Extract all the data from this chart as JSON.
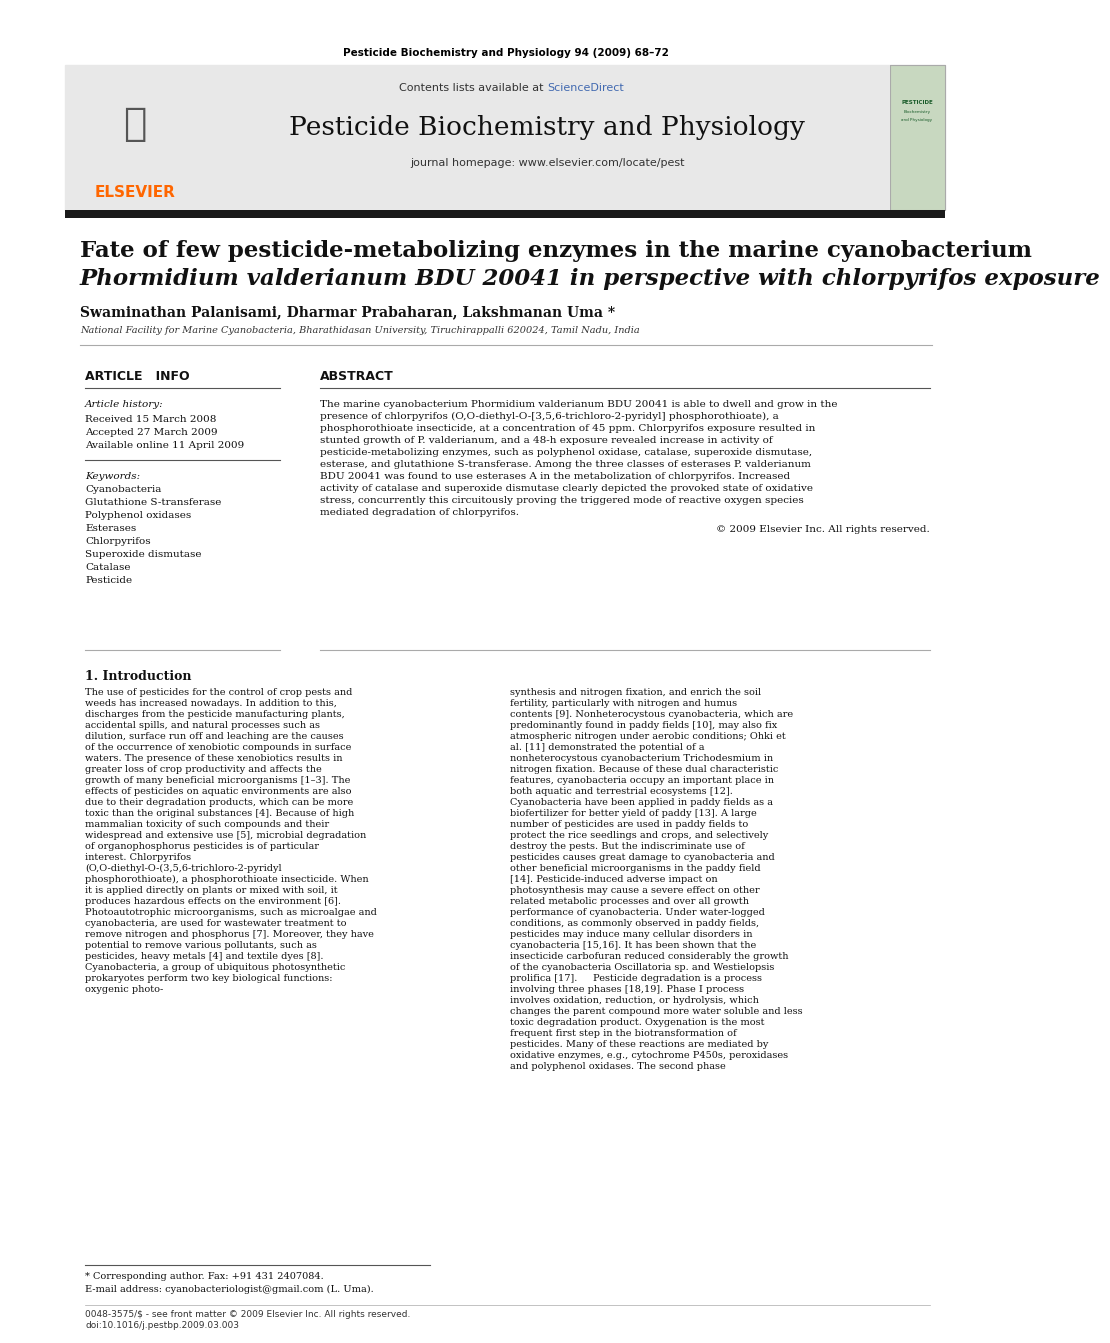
{
  "journal_header_text": "Pesticide Biochemistry and Physiology 94 (2009) 68–72",
  "journal_name": "Pesticide Biochemistry and Physiology",
  "contents_text": "Contents lists available at ScienceDirect",
  "sciencedirect_color": "#4169B0",
  "journal_homepage": "journal homepage: www.elsevier.com/locate/pest",
  "elsevier_color": "#FF6600",
  "title_line1": "Fate of few pesticide-metabolizing enzymes in the marine cyanobacterium",
  "title_line2": "Phormidium valderianum BDU 20041 in perspective with chlorpyrifos exposure",
  "authors": "Swaminathan Palanisami, Dharmar Prabaharan, Lakshmanan Uma *",
  "affiliation": "National Facility for Marine Cyanobacteria, Bharathidasan University, Tiruchirappalli 620024, Tamil Nadu, India",
  "article_info_header": "ARTICLE   INFO",
  "abstract_header": "ABSTRACT",
  "article_history_label": "Article history:",
  "received": "Received 15 March 2008",
  "accepted": "Accepted 27 March 2009",
  "available": "Available online 11 April 2009",
  "keywords_label": "Keywords:",
  "keywords": [
    "Cyanobacteria",
    "Glutathione S-transferase",
    "Polyphenol oxidases",
    "Esterases",
    "Chlorpyrifos",
    "Superoxide dismutase",
    "Catalase",
    "Pesticide"
  ],
  "abstract_text": "The marine cyanobacterium Phormidium valderianum BDU 20041 is able to dwell and grow in the presence of chlorpyrifos (O,O-diethyl-O-[3,5,6-trichloro-2-pyridyl] phosphorothioate), a phosphorothioate insecticide, at a concentration of 45 ppm. Chlorpyrifos exposure resulted in stunted growth of P. valderianum, and a 48-h exposure revealed increase in activity of pesticide-metabolizing enzymes, such as polyphenol oxidase, catalase, superoxide dismutase, esterase, and glutathione S-transferase. Among the three classes of esterases P. valderianum BDU 20041 was found to use esterases A in the metabolization of chlorpyrifos. Increased activity of catalase and superoxide dismutase clearly depicted the provoked state of oxidative stress, concurrently this circuitously proving the triggered mode of reactive oxygen species mediated degradation of chlorpyrifos.",
  "copyright_text": "© 2009 Elsevier Inc. All rights reserved.",
  "section1_header": "1. Introduction",
  "intro_col1": "The use of pesticides for the control of crop pests and weeds has increased nowadays. In addition to this, discharges from the pesticide manufacturing plants, accidental spills, and natural processes such as dilution, surface run off and leaching are the causes of the occurrence of xenobiotic compounds in surface waters. The presence of these xenobiotics results in greater loss of crop productivity and affects the growth of many beneficial microorganisms [1–3]. The effects of pesticides on aquatic environments are also due to their degradation products, which can be more toxic than the original substances [4]. Because of high mammalian toxicity of such compounds and their widespread and extensive use [5], microbial degradation of organophosphorus pesticides is of particular interest. Chlorpyrifos (O,O-diethyl-O-(3,5,6-trichloro-2-pyridyl phosphorothioate), a phosphorothioate insecticide. When it is applied directly on plants or mixed with soil, it produces hazardous effects on the environment [6].\n    Photoautotrophic microorganisms, such as microalgae and cyanobacteria, are used for wastewater treatment to remove nitrogen and phosphorus [7]. Moreover, they have potential to remove various pollutants, such as pesticides, heavy metals [4] and textile dyes [8]. Cyanobacteria, a group of ubiquitous photosynthetic prokaryotes perform two key biological functions: oxygenic photo-",
  "intro_col2": "synthesis and nitrogen fixation, and enrich the soil fertility, particularly with nitrogen and humus contents [9]. Nonheterocystous cyanobacteria, which are predominantly found in paddy fields [10], may also fix atmospheric nitrogen under aerobic conditions; Ohki et al. [11] demonstrated the potential of a nonheterocystous cyanobacterium Trichodesmium in nitrogen fixation. Because of these dual characteristic features, cyanobacteria occupy an important place in both aquatic and terrestrial ecosystems [12]. Cyanobacteria have been applied in paddy fields as a biofertilizer for better yield of paddy [13]. A large number of pesticides are used in paddy fields to protect the rice seedlings and crops, and selectively destroy the pests. But the indiscriminate use of pesticides causes great damage to cyanobacteria and other beneficial microorganisms in the paddy field [14]. Pesticide-induced adverse impact on photosynthesis may cause a severe effect on other related metabolic processes and over all growth performance of cyanobacteria. Under water-logged conditions, as commonly observed in paddy fields, pesticides may induce many cellular disorders in cyanobacteria [15,16]. It has been shown that the insecticide carbofuran reduced considerably the growth of the cyanobacteria Oscillatoria sp. and Westielopsis prolifica [17].\n    Pesticide degradation is a process involving three phases [18,19]. Phase I process involves oxidation, reduction, or hydrolysis, which changes the parent compound more water soluble and less toxic degradation product. Oxygenation is the most frequent first step in the biotransformation of pesticides. Many of these reactions are mediated by oxidative enzymes, e.g., cytochrome P450s, peroxidases and polyphenol oxidases. The second phase",
  "footnote_text": "* Corresponding author. Fax: +91 431 2407084.",
  "footnote_email": "E-mail address: cyanobacteriologist@gmail.com (L. Uma).",
  "footer_text": "0048-3575/$ - see front matter © 2009 Elsevier Inc. All rights reserved.",
  "doi_text": "doi:10.1016/j.pestbp.2009.03.003",
  "bg_color": "#FFFFFF",
  "header_bg": "#E8E8E8",
  "dark_bar_color": "#1A1A1A",
  "text_color": "#000000",
  "light_gray": "#F0F0F0"
}
